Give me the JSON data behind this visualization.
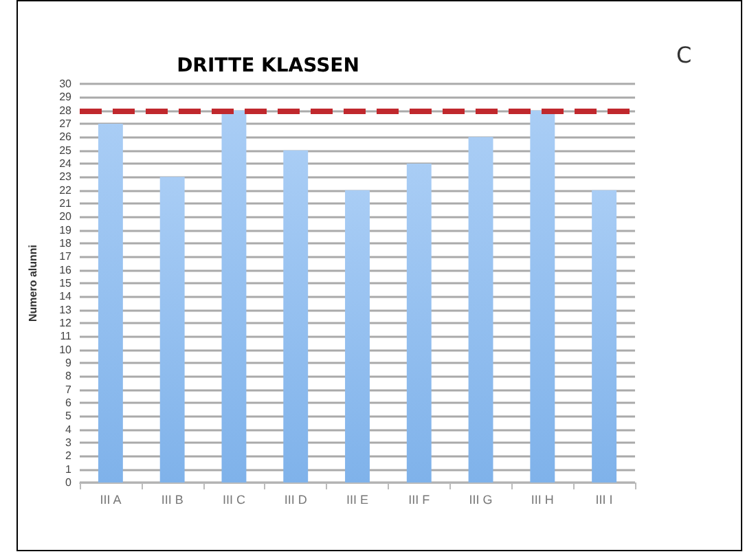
{
  "chart_data": {
    "type": "bar",
    "title": "DRITTE KLASSEN",
    "ylabel": "Numero alunni",
    "annotations": [
      "C"
    ],
    "categories": [
      "III A",
      "III B",
      "III C",
      "III D",
      "III E",
      "III F",
      "III G",
      "III H",
      "III I"
    ],
    "series": [
      {
        "color": "#7fb2ea",
        "values": [
          27,
          23,
          28,
          25,
          22,
          24,
          26,
          28,
          22
        ]
      }
    ],
    "ylim": [
      0,
      30
    ],
    "yticks": [
      0,
      1,
      2,
      3,
      4,
      5,
      6,
      7,
      8,
      9,
      10,
      11,
      12,
      13,
      14,
      15,
      16,
      17,
      18,
      19,
      20,
      21,
      22,
      23,
      24,
      25,
      26,
      27,
      28,
      29,
      30
    ],
    "ref_lines": [
      {
        "axis": "y",
        "value": 28,
        "color": "#c0282d",
        "line_style": "dashed"
      }
    ],
    "grid": "y"
  }
}
